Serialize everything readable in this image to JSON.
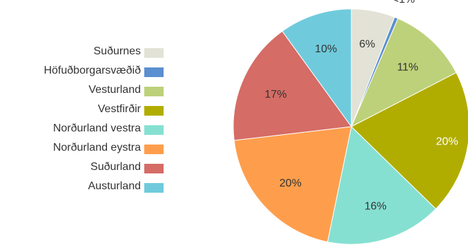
{
  "chart_data": {
    "type": "pie",
    "title": "",
    "legend_position": "left",
    "slices": [
      {
        "label": "Suðurnes",
        "value": 6,
        "value_label": "6%",
        "color": "#e2e2d6"
      },
      {
        "label": "Höfuðborgarsvæðið",
        "value": 0.5,
        "value_label": "<1%",
        "color": "#5b8fd0"
      },
      {
        "label": "Vesturland",
        "value": 11,
        "value_label": "11%",
        "color": "#bdd17a"
      },
      {
        "label": "Vestfirðir",
        "value": 20,
        "value_label": "20%",
        "color": "#b1ad00"
      },
      {
        "label": "Norðurland vestra",
        "value": 16,
        "value_label": "16%",
        "color": "#86e0d2"
      },
      {
        "label": "Norðurland eystra",
        "value": 20,
        "value_label": "20%",
        "color": "#fe9e4c"
      },
      {
        "label": "Suðurland",
        "value": 17,
        "value_label": "17%",
        "color": "#d56c66"
      },
      {
        "label": "Austurland",
        "value": 10,
        "value_label": "10%",
        "color": "#6fcbdc"
      }
    ]
  }
}
